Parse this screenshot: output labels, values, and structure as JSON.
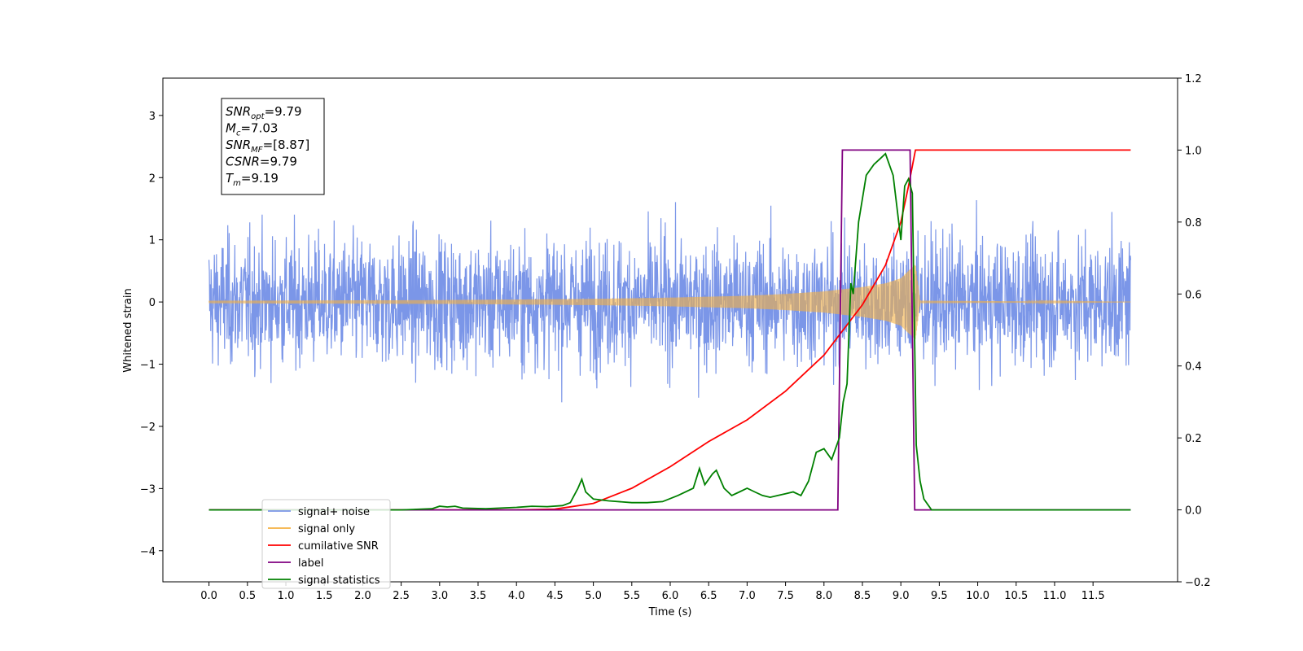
{
  "chart_data": {
    "type": "line",
    "xlabel": "Time (s)",
    "ylabel": "Whitened strain",
    "xlim": [
      -0.6,
      12.6
    ],
    "ylim": [
      -4.5,
      3.6
    ],
    "ylim_right": [
      -0.2,
      1.2
    ],
    "x_ticks": [
      "0.0",
      "0.5",
      "1.0",
      "1.5",
      "2.0",
      "2.5",
      "3.0",
      "3.5",
      "4.0",
      "4.5",
      "5.0",
      "5.5",
      "6.0",
      "6.5",
      "7.0",
      "7.5",
      "8.0",
      "8.5",
      "9.0",
      "9.5",
      "10.0",
      "10.5",
      "11.0",
      "11.5"
    ],
    "y_ticks": [
      "3",
      "2",
      "1",
      "0",
      "−1",
      "−2",
      "−3",
      "−4"
    ],
    "y_ticks_right": [
      "1.2",
      "1.0",
      "0.8",
      "0.6",
      "0.4",
      "0.2",
      "0.0",
      "−0.2"
    ],
    "grid": false,
    "legend_position": "lower-left",
    "annotation": {
      "lines": [
        {
          "var": "SNR",
          "sub": "opt",
          "value": "=9.79"
        },
        {
          "var": "M",
          "sub": "c",
          "value": "=7.03"
        },
        {
          "var": "SNR",
          "sub": "MF",
          "value": "=[8.87]"
        },
        {
          "var": "CSNR",
          "sub": "",
          "value": "=9.79"
        },
        {
          "var": "T",
          "sub": "m",
          "value": "=9.19"
        }
      ]
    },
    "series": [
      {
        "name": "signal+ noise",
        "color": "#7b96e8",
        "axis": "left",
        "kind": "noise",
        "x_range": [
          0.0,
          11.99
        ],
        "amplitude_band": [
          -1.5,
          1.5
        ]
      },
      {
        "name": "signal only",
        "color": "#f5b041",
        "axis": "left",
        "kind": "chirp",
        "merger_time": 9.19,
        "envelope_x": [
          0.0,
          3.0,
          5.0,
          6.0,
          7.0,
          7.5,
          8.0,
          8.5,
          8.8,
          9.0,
          9.1,
          9.19,
          9.25,
          11.99
        ],
        "envelope_y": [
          0.02,
          0.03,
          0.05,
          0.07,
          0.1,
          0.13,
          0.17,
          0.24,
          0.3,
          0.38,
          0.5,
          0.6,
          0.02,
          0.0
        ]
      },
      {
        "name": "cumilative SNR",
        "color": "#ff0000",
        "axis": "right",
        "x": [
          0.0,
          4.0,
          4.5,
          5.0,
          5.5,
          6.0,
          6.5,
          7.0,
          7.5,
          8.0,
          8.5,
          8.8,
          9.0,
          9.1,
          9.19,
          11.99
        ],
        "y": [
          0.0,
          0.0,
          0.002,
          0.018,
          0.06,
          0.12,
          0.19,
          0.25,
          0.33,
          0.43,
          0.57,
          0.68,
          0.8,
          0.9,
          1.0,
          1.0
        ]
      },
      {
        "name": "label",
        "color": "#800080",
        "axis": "right",
        "x": [
          0.0,
          8.18,
          8.24,
          9.12,
          9.18,
          11.99
        ],
        "y": [
          0.0,
          0.0,
          1.0,
          1.0,
          0.0,
          0.0
        ]
      },
      {
        "name": "signal statistics",
        "color": "#008000",
        "axis": "right",
        "x": [
          0.0,
          2.5,
          2.9,
          3.0,
          3.1,
          3.2,
          3.3,
          3.6,
          4.0,
          4.2,
          4.4,
          4.6,
          4.7,
          4.8,
          4.85,
          4.9,
          5.0,
          5.2,
          5.5,
          5.7,
          5.9,
          6.1,
          6.3,
          6.38,
          6.45,
          6.55,
          6.6,
          6.7,
          6.8,
          6.9,
          7.0,
          7.1,
          7.2,
          7.3,
          7.4,
          7.5,
          7.6,
          7.7,
          7.8,
          7.9,
          8.0,
          8.1,
          8.2,
          8.25,
          8.3,
          8.35,
          8.38,
          8.45,
          8.55,
          8.65,
          8.75,
          8.8,
          8.9,
          9.0,
          9.05,
          9.1,
          9.15,
          9.2,
          9.25,
          9.3,
          9.4,
          11.99
        ],
        "y": [
          0.0,
          0.0,
          0.003,
          0.01,
          0.008,
          0.01,
          0.005,
          0.003,
          0.007,
          0.01,
          0.009,
          0.012,
          0.02,
          0.06,
          0.085,
          0.05,
          0.03,
          0.025,
          0.02,
          0.02,
          0.023,
          0.04,
          0.06,
          0.115,
          0.07,
          0.1,
          0.11,
          0.06,
          0.04,
          0.05,
          0.06,
          0.05,
          0.04,
          0.035,
          0.04,
          0.045,
          0.05,
          0.04,
          0.08,
          0.16,
          0.17,
          0.14,
          0.2,
          0.3,
          0.35,
          0.63,
          0.6,
          0.8,
          0.93,
          0.96,
          0.98,
          0.99,
          0.93,
          0.75,
          0.9,
          0.92,
          0.88,
          0.18,
          0.08,
          0.03,
          0.0,
          0.0
        ]
      }
    ]
  }
}
